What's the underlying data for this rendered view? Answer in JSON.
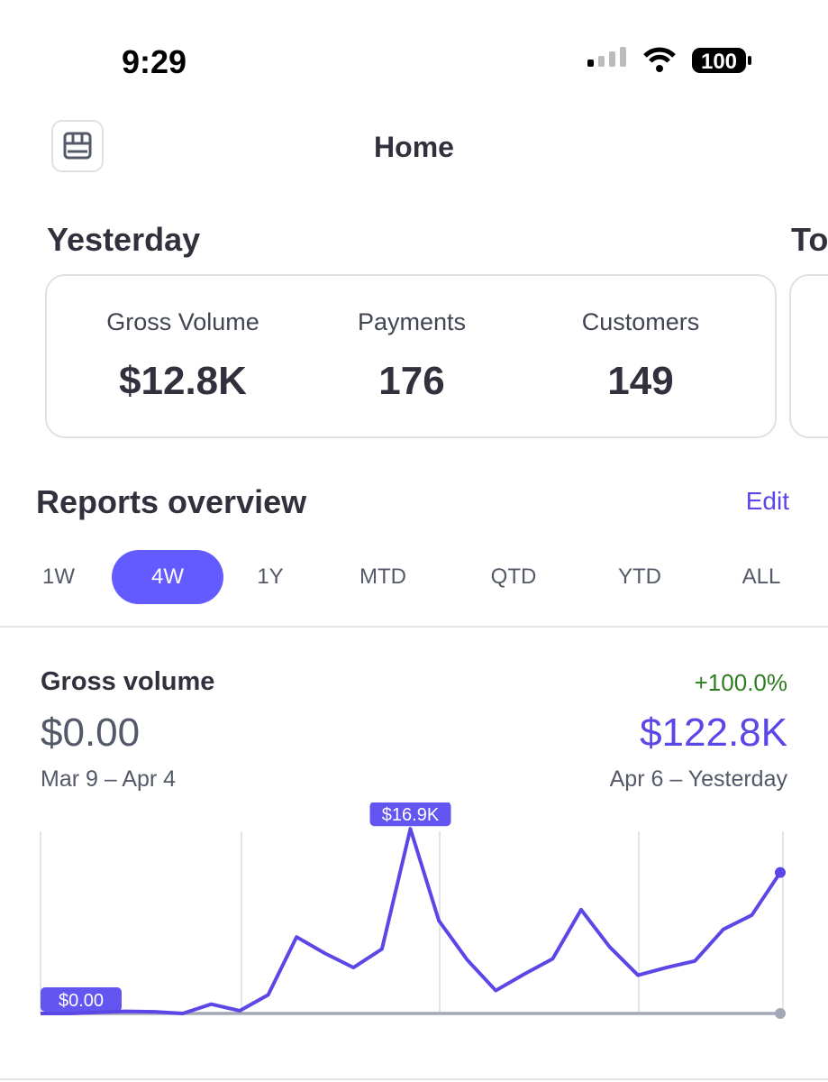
{
  "status_bar": {
    "time": "9:29",
    "battery": "100"
  },
  "header": {
    "title": "Home"
  },
  "sections": {
    "yesterday": "Yesterday",
    "next": "To"
  },
  "stats": [
    {
      "label": "Gross Volume",
      "value": "$12.8K"
    },
    {
      "label": "Payments",
      "value": "176"
    },
    {
      "label": "Customers",
      "value": "149"
    }
  ],
  "reports": {
    "title": "Reports overview",
    "edit": "Edit",
    "tabs": [
      "1W",
      "4W",
      "1Y",
      "MTD",
      "QTD",
      "YTD",
      "ALL"
    ],
    "active_tab": 1
  },
  "gross_volume": {
    "title": "Gross volume",
    "change": "+100.0%",
    "previous_value": "$0.00",
    "current_value": "$122.8K",
    "previous_range": "Mar 9 – Apr 4",
    "current_range": "Apr 6 – Yesterday"
  },
  "chart_data": {
    "type": "line",
    "ylim": [
      0,
      17000
    ],
    "series": [
      {
        "color": "#a3a7b8",
        "values": [
          0,
          0,
          0,
          0,
          0,
          0,
          0,
          0,
          0,
          0,
          0,
          0,
          0,
          0,
          0,
          0,
          0,
          0,
          0,
          0,
          0,
          0,
          0,
          0,
          0,
          0,
          0
        ],
        "value_labels": [
          "$0.00",
          null,
          null,
          null,
          null,
          null,
          null,
          null,
          null,
          null,
          null,
          null,
          null,
          null,
          null,
          null,
          null,
          null,
          null,
          null,
          null,
          null,
          null,
          null,
          null,
          null,
          null
        ]
      },
      {
        "color": "#5b47e6",
        "values": [
          0,
          0,
          100,
          200,
          150,
          0,
          850,
          250,
          1700,
          7000,
          5500,
          4200,
          5900,
          16900,
          8500,
          4900,
          2100,
          3600,
          5000,
          9500,
          6100,
          3500,
          4200,
          4800,
          7700,
          9000,
          12900
        ],
        "value_labels": [
          null,
          null,
          null,
          null,
          null,
          null,
          null,
          null,
          null,
          null,
          null,
          null,
          null,
          "$16.9K",
          null,
          null,
          null,
          null,
          null,
          null,
          null,
          null,
          null,
          null,
          null,
          null,
          null
        ]
      }
    ]
  }
}
